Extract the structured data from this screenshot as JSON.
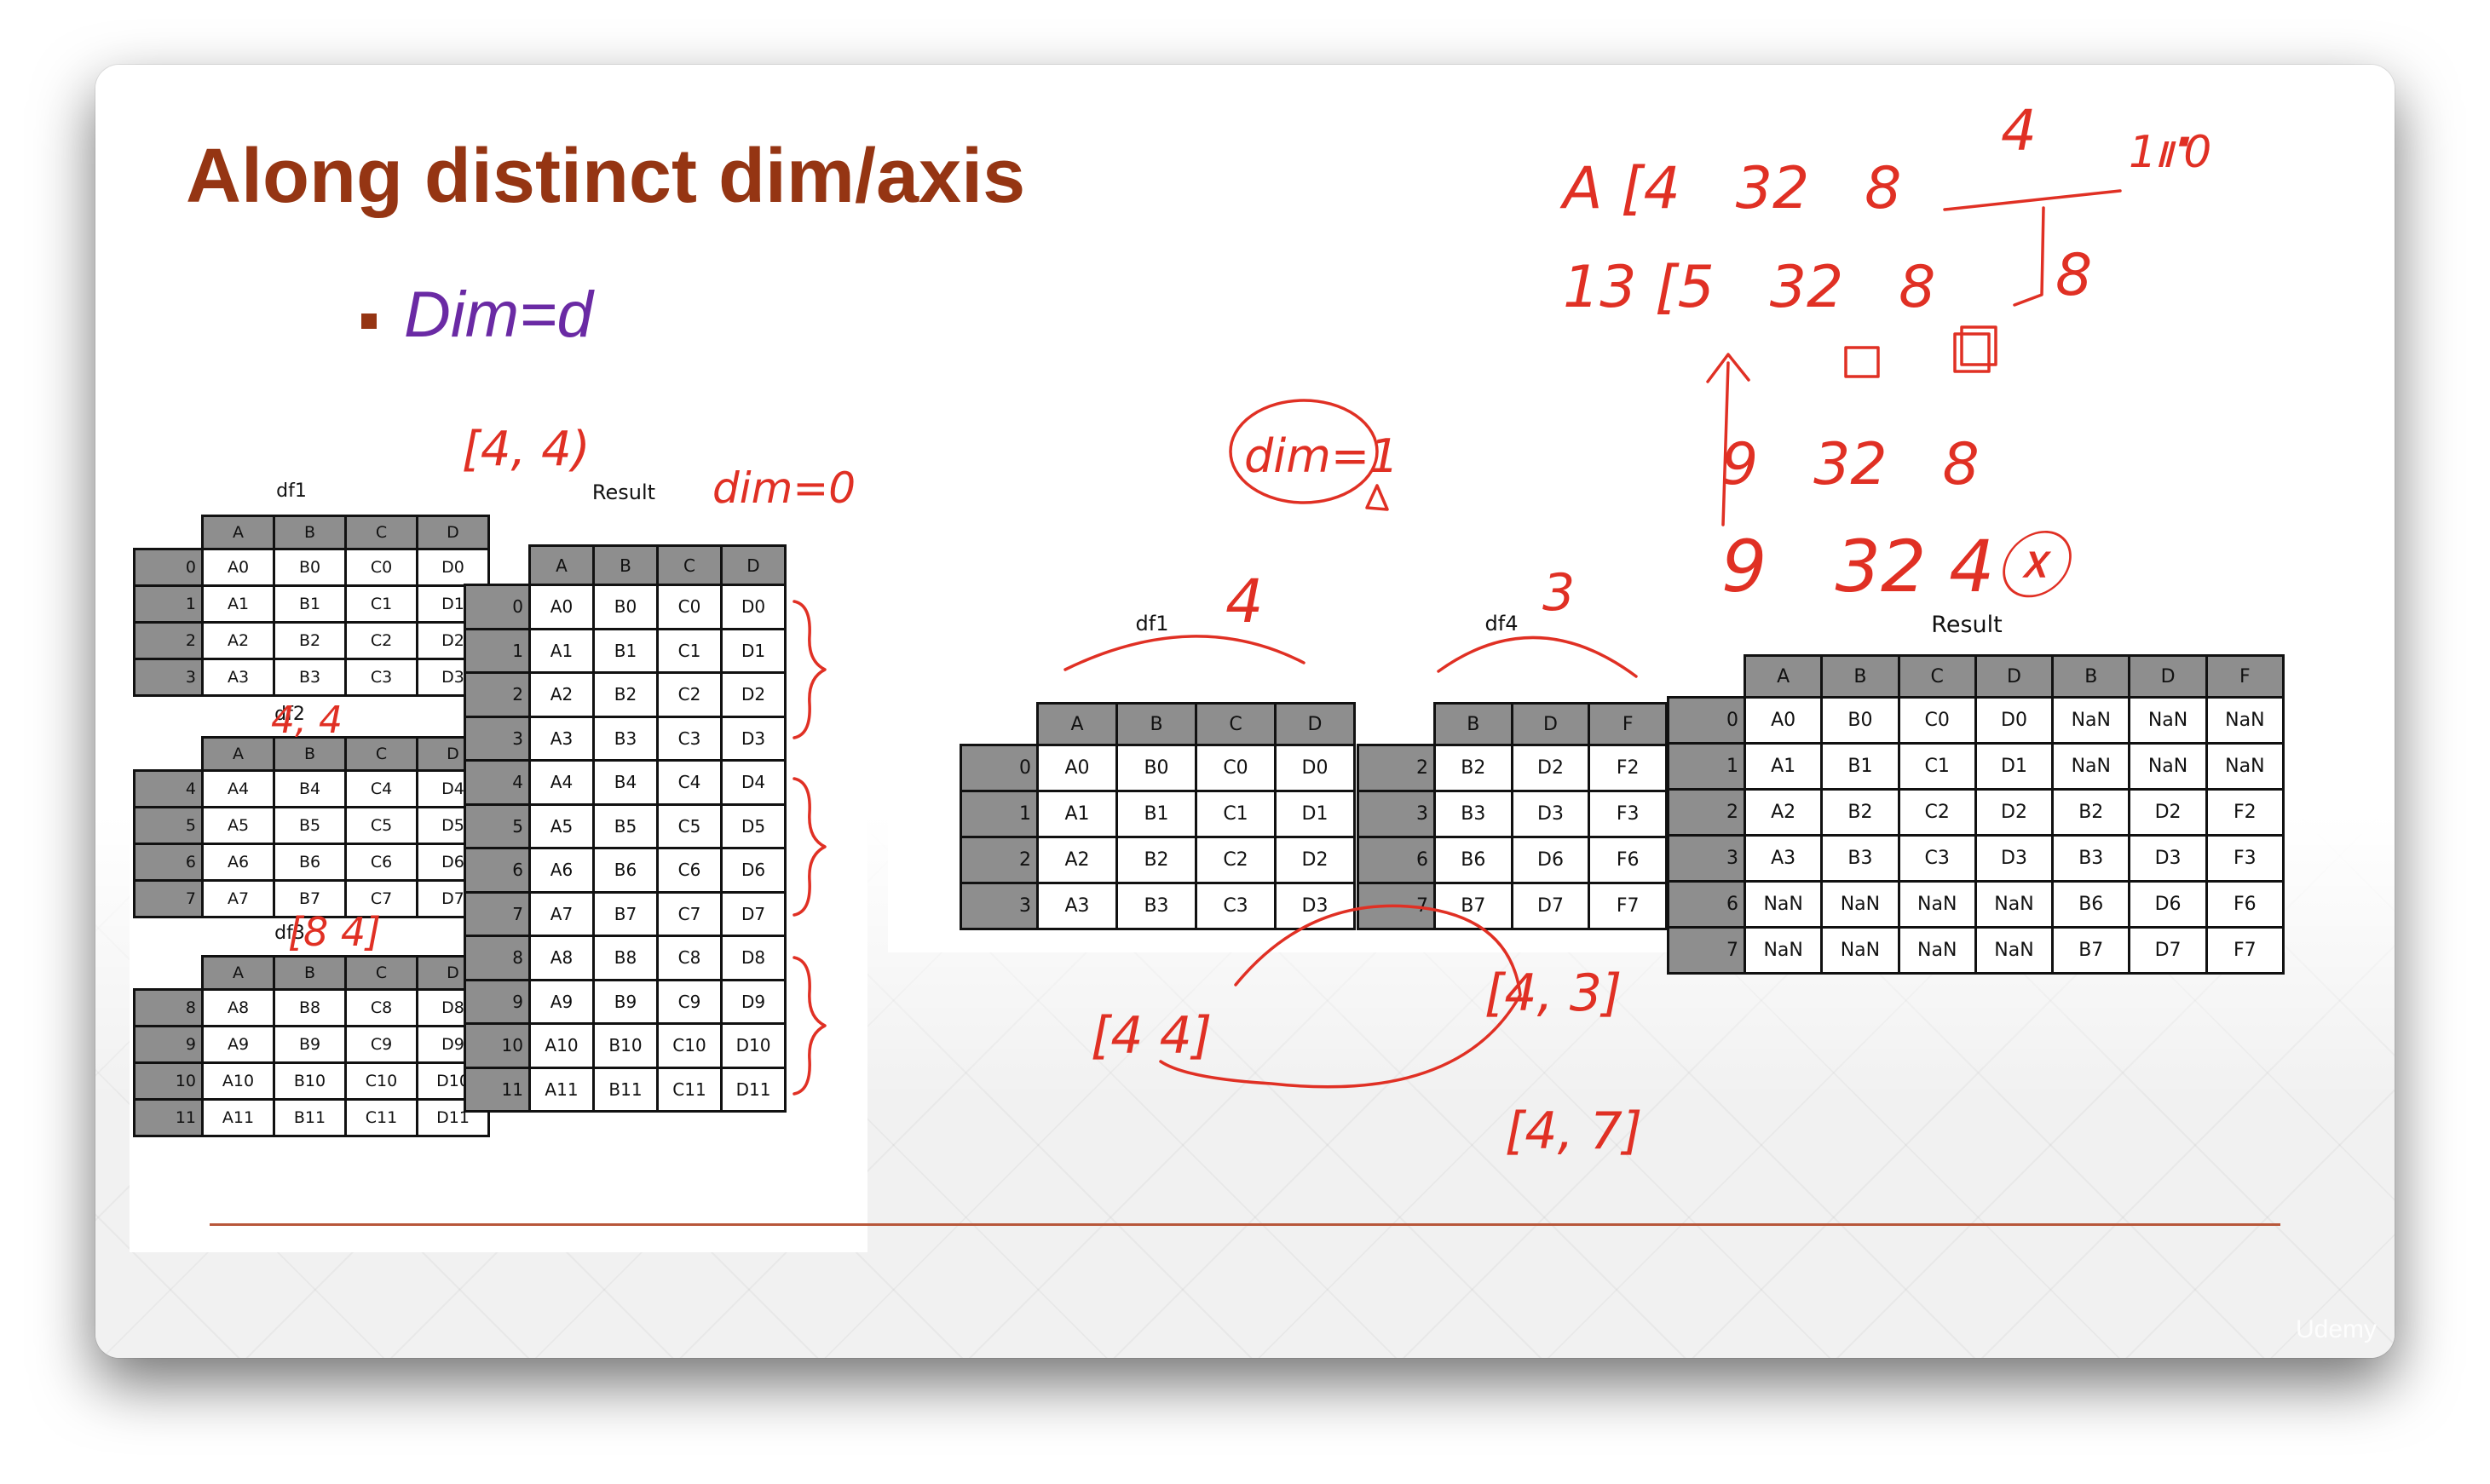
{
  "slide": {
    "title": "Along distinct dim/axis",
    "bullet": "Dim=d"
  },
  "left": {
    "captions": {
      "df1": "df1",
      "df2": "df2",
      "df3": "df3",
      "result": "Result"
    },
    "columns": [
      "A",
      "B",
      "C",
      "D"
    ],
    "df1": [
      {
        "idx": "0",
        "cells": [
          "A0",
          "B0",
          "C0",
          "D0"
        ]
      },
      {
        "idx": "1",
        "cells": [
          "A1",
          "B1",
          "C1",
          "D1"
        ]
      },
      {
        "idx": "2",
        "cells": [
          "A2",
          "B2",
          "C2",
          "D2"
        ]
      },
      {
        "idx": "3",
        "cells": [
          "A3",
          "B3",
          "C3",
          "D3"
        ]
      }
    ],
    "df2": [
      {
        "idx": "4",
        "cells": [
          "A4",
          "B4",
          "C4",
          "D4"
        ]
      },
      {
        "idx": "5",
        "cells": [
          "A5",
          "B5",
          "C5",
          "D5"
        ]
      },
      {
        "idx": "6",
        "cells": [
          "A6",
          "B6",
          "C6",
          "D6"
        ]
      },
      {
        "idx": "7",
        "cells": [
          "A7",
          "B7",
          "C7",
          "D7"
        ]
      }
    ],
    "df3": [
      {
        "idx": "8",
        "cells": [
          "A8",
          "B8",
          "C8",
          "D8"
        ]
      },
      {
        "idx": "9",
        "cells": [
          "A9",
          "B9",
          "C9",
          "D9"
        ]
      },
      {
        "idx": "10",
        "cells": [
          "A10",
          "B10",
          "C10",
          "D10"
        ]
      },
      {
        "idx": "11",
        "cells": [
          "A11",
          "B11",
          "C11",
          "D11"
        ]
      }
    ],
    "result": [
      {
        "idx": "0",
        "cells": [
          "A0",
          "B0",
          "C0",
          "D0"
        ]
      },
      {
        "idx": "1",
        "cells": [
          "A1",
          "B1",
          "C1",
          "D1"
        ]
      },
      {
        "idx": "2",
        "cells": [
          "A2",
          "B2",
          "C2",
          "D2"
        ]
      },
      {
        "idx": "3",
        "cells": [
          "A3",
          "B3",
          "C3",
          "D3"
        ]
      },
      {
        "idx": "4",
        "cells": [
          "A4",
          "B4",
          "C4",
          "D4"
        ]
      },
      {
        "idx": "5",
        "cells": [
          "A5",
          "B5",
          "C5",
          "D5"
        ]
      },
      {
        "idx": "6",
        "cells": [
          "A6",
          "B6",
          "C6",
          "D6"
        ]
      },
      {
        "idx": "7",
        "cells": [
          "A7",
          "B7",
          "C7",
          "D7"
        ]
      },
      {
        "idx": "8",
        "cells": [
          "A8",
          "B8",
          "C8",
          "D8"
        ]
      },
      {
        "idx": "9",
        "cells": [
          "A9",
          "B9",
          "C9",
          "D9"
        ]
      },
      {
        "idx": "10",
        "cells": [
          "A10",
          "B10",
          "C10",
          "D10"
        ]
      },
      {
        "idx": "11",
        "cells": [
          "A11",
          "B11",
          "C11",
          "D11"
        ]
      }
    ]
  },
  "right": {
    "captions": {
      "df1": "df1",
      "df4": "df4",
      "result": "Result"
    },
    "df1_columns": [
      "A",
      "B",
      "C",
      "D"
    ],
    "df1": [
      {
        "idx": "0",
        "cells": [
          "A0",
          "B0",
          "C0",
          "D0"
        ]
      },
      {
        "idx": "1",
        "cells": [
          "A1",
          "B1",
          "C1",
          "D1"
        ]
      },
      {
        "idx": "2",
        "cells": [
          "A2",
          "B2",
          "C2",
          "D2"
        ]
      },
      {
        "idx": "3",
        "cells": [
          "A3",
          "B3",
          "C3",
          "D3"
        ]
      }
    ],
    "df4_columns": [
      "B",
      "D",
      "F"
    ],
    "df4": [
      {
        "idx": "2",
        "cells": [
          "B2",
          "D2",
          "F2"
        ]
      },
      {
        "idx": "3",
        "cells": [
          "B3",
          "D3",
          "F3"
        ]
      },
      {
        "idx": "6",
        "cells": [
          "B6",
          "D6",
          "F6"
        ]
      },
      {
        "idx": "7",
        "cells": [
          "B7",
          "D7",
          "F7"
        ]
      }
    ],
    "result_columns": [
      "A",
      "B",
      "C",
      "D",
      "B",
      "D",
      "F"
    ],
    "result": [
      {
        "idx": "0",
        "cells": [
          "A0",
          "B0",
          "C0",
          "D0",
          "NaN",
          "NaN",
          "NaN"
        ]
      },
      {
        "idx": "1",
        "cells": [
          "A1",
          "B1",
          "C1",
          "D1",
          "NaN",
          "NaN",
          "NaN"
        ]
      },
      {
        "idx": "2",
        "cells": [
          "A2",
          "B2",
          "C2",
          "D2",
          "B2",
          "D2",
          "F2"
        ]
      },
      {
        "idx": "3",
        "cells": [
          "A3",
          "B3",
          "C3",
          "D3",
          "B3",
          "D3",
          "F3"
        ]
      },
      {
        "idx": "6",
        "cells": [
          "NaN",
          "NaN",
          "NaN",
          "NaN",
          "B6",
          "D6",
          "F6"
        ]
      },
      {
        "idx": "7",
        "cells": [
          "NaN",
          "NaN",
          "NaN",
          "NaN",
          "B7",
          "D7",
          "F7"
        ]
      }
    ]
  },
  "annotations": {
    "left_shape": "[4, 4)",
    "left_dim": "dim=0",
    "left_df2_shape": "4, 4",
    "left_df3_shape": "[8 4]",
    "right_dim": "dim=1",
    "right_df1_cols": "4",
    "right_df4_cols": "3",
    "right_shape_a": "[4 4]",
    "right_shape_b": "[4, 3]",
    "right_shape_c": "[4, 7]",
    "calc_row1": "A [4   32   8",
    "calc_row1_top": "4",
    "calc_row1_corner": "1⑈0",
    "calc_row2": "13 [5   32   8",
    "calc_row2_right": "8",
    "calc_row3": "9   32   8",
    "calc_row4": "9   32 4ⓧ",
    "ink_color": "#e03024"
  },
  "watermark": "Udemy",
  "colors": {
    "title": "#953513",
    "bullet": "#6a2aa4",
    "header_fill": "#8e8e8e",
    "rule": "#b8573a"
  }
}
